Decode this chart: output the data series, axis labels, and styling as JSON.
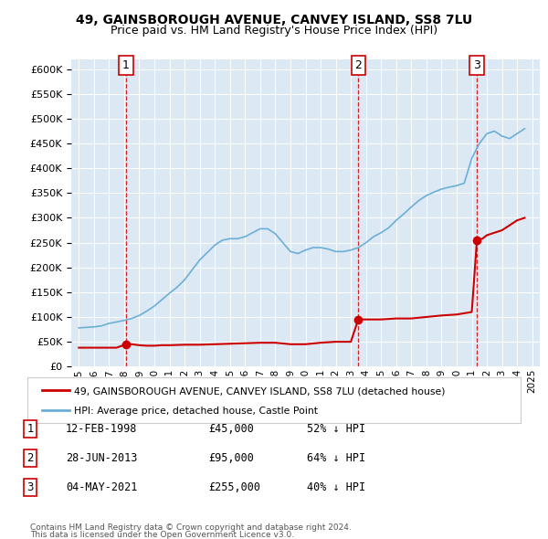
{
  "title1": "49, GAINSBOROUGH AVENUE, CANVEY ISLAND, SS8 7LU",
  "title2": "Price paid vs. HM Land Registry's House Price Index (HPI)",
  "background_color": "#dce9f5",
  "plot_bg_color": "#dce9f5",
  "hpi_color": "#6baed6",
  "price_color": "#cc0000",
  "dashed_color": "#cc0000",
  "transactions": [
    {
      "label": "1",
      "date": "1998-02-12",
      "x": 1998.12,
      "price": 45000
    },
    {
      "label": "2",
      "date": "2013-06-28",
      "x": 2013.49,
      "price": 95000
    },
    {
      "label": "3",
      "date": "2021-05-04",
      "x": 2021.34,
      "price": 255000
    }
  ],
  "table_rows": [
    {
      "num": "1",
      "date": "12-FEB-1998",
      "price": "£45,000",
      "note": "52% ↓ HPI"
    },
    {
      "num": "2",
      "date": "28-JUN-2013",
      "price": "£95,000",
      "note": "64% ↓ HPI"
    },
    {
      "num": "3",
      "date": "04-MAY-2021",
      "price": "£255,000",
      "note": "40% ↓ HPI"
    }
  ],
  "legend_line1": "49, GAINSBOROUGH AVENUE, CANVEY ISLAND, SS8 7LU (detached house)",
  "legend_line2": "HPI: Average price, detached house, Castle Point",
  "footer1": "Contains HM Land Registry data © Crown copyright and database right 2024.",
  "footer2": "This data is licensed under the Open Government Licence v3.0.",
  "ylim": [
    0,
    620000
  ],
  "yticks": [
    0,
    50000,
    100000,
    150000,
    200000,
    250000,
    300000,
    350000,
    400000,
    450000,
    500000,
    550000,
    600000
  ],
  "xlim": [
    1994.5,
    2025.5
  ],
  "xticks": [
    1995,
    1996,
    1997,
    1998,
    1999,
    2000,
    2001,
    2002,
    2003,
    2004,
    2005,
    2006,
    2007,
    2008,
    2009,
    2010,
    2011,
    2012,
    2013,
    2014,
    2015,
    2016,
    2017,
    2018,
    2019,
    2020,
    2021,
    2022,
    2023,
    2024,
    2025
  ]
}
